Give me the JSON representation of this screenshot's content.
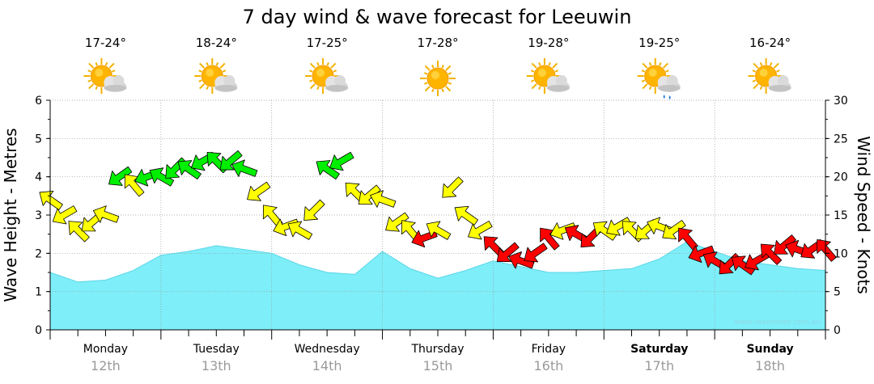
{
  "title": "7 day wind & wave forecast for Leeuwin",
  "watermark": "www.seabreeze.com.au",
  "left_axis": {
    "label": "Wave Height - Metres",
    "min": 0,
    "max": 6,
    "ticks": [
      "0",
      "1",
      "2",
      "3",
      "4",
      "5",
      "6"
    ]
  },
  "right_axis": {
    "label": "Wind Speed - Knots",
    "min": 0,
    "max": 30,
    "ticks": [
      "0",
      "5",
      "10",
      "15",
      "20",
      "25",
      "30"
    ]
  },
  "days": [
    {
      "name": "Monday",
      "date": "12th",
      "temp": "17-24°",
      "icon": "partly-cloudy-icon",
      "bold": false
    },
    {
      "name": "Tuesday",
      "date": "13th",
      "temp": "18-24°",
      "icon": "partly-cloudy-icon",
      "bold": false
    },
    {
      "name": "Wednesday",
      "date": "14th",
      "temp": "17-25°",
      "icon": "partly-cloudy-icon",
      "bold": false
    },
    {
      "name": "Thursday",
      "date": "15th",
      "temp": "17-28°",
      "icon": "sunny-icon",
      "bold": false
    },
    {
      "name": "Friday",
      "date": "16th",
      "temp": "19-28°",
      "icon": "partly-cloudy-icon",
      "bold": false
    },
    {
      "name": "Saturday",
      "date": "17th",
      "temp": "19-25°",
      "icon": "cloud-rain-icon",
      "bold": true
    },
    {
      "name": "Sunday",
      "date": "18th",
      "temp": "16-24°",
      "icon": "partly-cloudy-icon",
      "bold": true
    }
  ],
  "colors": {
    "wave_fill": "#7eeef8",
    "wave_line": "#5ad6e8",
    "strong": "#ff0000",
    "moderate": "#ffff00",
    "light": "#00ee00",
    "grid": "#999999"
  },
  "chart_data": {
    "type": "area",
    "x_unit": "hours from start of Monday 12th",
    "x_range": [
      0,
      168
    ],
    "wave_height": {
      "name": "Wave Height",
      "unit": "Metres",
      "x": [
        0,
        6,
        12,
        18,
        24,
        30,
        36,
        42,
        48,
        54,
        60,
        66,
        72,
        78,
        84,
        90,
        96,
        102,
        108,
        114,
        120,
        126,
        132,
        138,
        144,
        150,
        156,
        162,
        168
      ],
      "y": [
        1.5,
        1.25,
        1.3,
        1.55,
        1.95,
        2.05,
        2.2,
        2.1,
        2.0,
        1.7,
        1.5,
        1.45,
        2.05,
        1.6,
        1.35,
        1.55,
        1.8,
        1.65,
        1.5,
        1.5,
        1.55,
        1.6,
        1.85,
        2.3,
        2.05,
        1.8,
        1.7,
        1.6,
        1.55
      ]
    },
    "wind_speed": {
      "name": "Wind Speed",
      "unit": "Knots",
      "x": [
        0,
        3,
        6,
        9,
        12,
        15,
        18,
        21,
        24,
        27,
        30,
        33,
        36,
        39,
        42,
        45,
        48,
        51,
        54,
        57,
        60,
        63,
        66,
        69,
        72,
        75,
        78,
        81,
        84,
        87,
        90,
        93,
        96,
        99,
        102,
        105,
        108,
        111,
        114,
        117,
        120,
        123,
        126,
        129,
        132,
        135,
        138,
        141,
        144,
        147,
        150,
        153,
        156,
        159,
        162,
        165,
        168
      ],
      "y": [
        17,
        15,
        13,
        14,
        15,
        20,
        19,
        20,
        20,
        21,
        21,
        22,
        22,
        22,
        21,
        18,
        15,
        13.5,
        13,
        15.5,
        21,
        22,
        18,
        17.5,
        17,
        14,
        13,
        12,
        13,
        18.5,
        15,
        13,
        11,
        10,
        9,
        10,
        12,
        13,
        12.5,
        12,
        13,
        13.5,
        13,
        13,
        13.5,
        13,
        12,
        10,
        9,
        8.5,
        8.5,
        9,
        10,
        11,
        10.5,
        10.5,
        10.5
      ]
    }
  }
}
